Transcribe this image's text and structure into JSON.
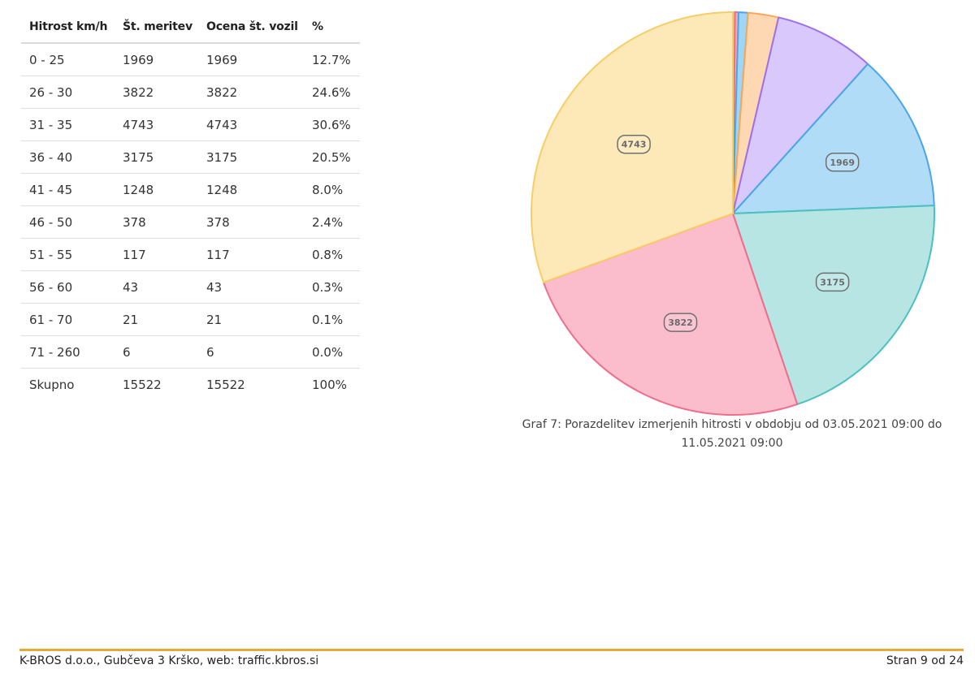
{
  "table": {
    "headers": [
      "Hitrost km/h",
      "Št. meritev",
      "Ocena št. vozil",
      "%"
    ],
    "rows": [
      [
        "0 - 25",
        "1969",
        "1969",
        "12.7%"
      ],
      [
        "26 - 30",
        "3822",
        "3822",
        "24.6%"
      ],
      [
        "31 - 35",
        "4743",
        "4743",
        "30.6%"
      ],
      [
        "36 - 40",
        "3175",
        "3175",
        "20.5%"
      ],
      [
        "41 - 45",
        "1248",
        "1248",
        "8.0%"
      ],
      [
        "46 - 50",
        "378",
        "378",
        "2.4%"
      ],
      [
        "51 - 55",
        "117",
        "117",
        "0.8%"
      ],
      [
        "56 - 60",
        "43",
        "43",
        "0.3%"
      ],
      [
        "61 - 70",
        "21",
        "21",
        "0.1%"
      ],
      [
        "71 - 260",
        "6",
        "6",
        "0.0%"
      ]
    ],
    "total": [
      "Skupno",
      "15522",
      "15522",
      "100%"
    ]
  },
  "chart_data": {
    "type": "pie",
    "categories": [
      "0 - 25",
      "26 - 30",
      "31 - 35",
      "36 - 40",
      "41 - 45",
      "46 - 50",
      "51 - 55",
      "56 - 60",
      "61 - 70",
      "71 - 260"
    ],
    "values": [
      1969,
      3822,
      4743,
      3175,
      1248,
      378,
      117,
      43,
      21,
      6
    ],
    "data_labels": [
      "1969",
      "3822",
      "4743",
      "3175",
      "",
      "",
      "",
      "",
      "",
      ""
    ],
    "slice_order": [
      "71 - 260",
      "61 - 70",
      "56 - 60",
      "51 - 55",
      "46 - 50",
      "41 - 45",
      "0 - 25",
      "36 - 40",
      "26 - 30",
      "31 - 35"
    ],
    "colors": {
      "0 - 25": {
        "fill": "#b0dcf7",
        "stroke": "#4aa6e6"
      },
      "26 - 30": {
        "fill": "#fbbdcc",
        "stroke": "#f06d8c"
      },
      "31 - 35": {
        "fill": "#fde8b8",
        "stroke": "#f7cd67"
      },
      "36 - 40": {
        "fill": "#b6e5e4",
        "stroke": "#4cc0c0"
      },
      "41 - 45": {
        "fill": "#d8c8fb",
        "stroke": "#9c6ff0"
      },
      "46 - 50": {
        "fill": "#fed8b2",
        "stroke": "#f8a75a"
      },
      "51 - 55": {
        "fill": "#9fd6f5",
        "stroke": "#4aa6e6"
      },
      "56 - 60": {
        "fill": "#f9a8bc",
        "stroke": "#f06d8c"
      },
      "61 - 70": {
        "fill": "#fbd38e",
        "stroke": "#f7b23d"
      },
      "71 - 260": {
        "fill": "#9fe0de",
        "stroke": "#4cc0c0"
      }
    },
    "start": "top",
    "direction": "clockwise"
  },
  "caption": "Graf 7: Porazdelitev izmerjenih hitrosti v obdobju od 03.05.2021 09:00 do 11.05.2021 09:00",
  "footer": {
    "left": "K-BROS d.o.o., Gubčeva 3 Krško, web: traffic.kbros.si",
    "right": "Stran 9 od 24"
  }
}
